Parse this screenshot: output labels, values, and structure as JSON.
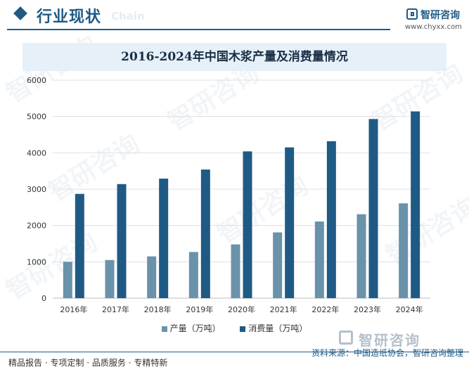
{
  "header": {
    "title": "行业现状",
    "ghost_text": "Chain"
  },
  "brand": {
    "name": "智研咨询",
    "url": "www.chyxx.com"
  },
  "watermark_text": "智研咨询",
  "colors": {
    "primary": "#1f5a85",
    "production": "#6a92aa",
    "consumption": "#1f5a85",
    "title_band": "#e6f0f8",
    "grid": "#e0e0e0"
  },
  "chart_data": {
    "type": "bar",
    "title": "2016-2024年中国木浆产量及消费量情况",
    "categories": [
      "2016年",
      "2017年",
      "2018年",
      "2019年",
      "2020年",
      "2021年",
      "2022年",
      "2023年",
      "2024年"
    ],
    "series": [
      {
        "name": "产量（万吨）",
        "color": "#6a92aa",
        "values": [
          1000,
          1050,
          1150,
          1270,
          1480,
          1810,
          2110,
          2310,
          2610
        ]
      },
      {
        "name": "消费量（万吨）",
        "color": "#1f5a85",
        "values": [
          2870,
          3140,
          3290,
          3540,
          4040,
          4150,
          4320,
          4930,
          5140
        ]
      }
    ],
    "ylim": [
      0,
      6000
    ],
    "yticks": [
      0,
      1000,
      2000,
      3000,
      4000,
      5000,
      6000
    ],
    "grid": true,
    "legend_position": "bottom"
  },
  "footer": {
    "left": "精品报告 · 专项定制 · 品质服务 · 专精特新",
    "source": "资料来源：中国造纸协会，智研咨询整理"
  }
}
